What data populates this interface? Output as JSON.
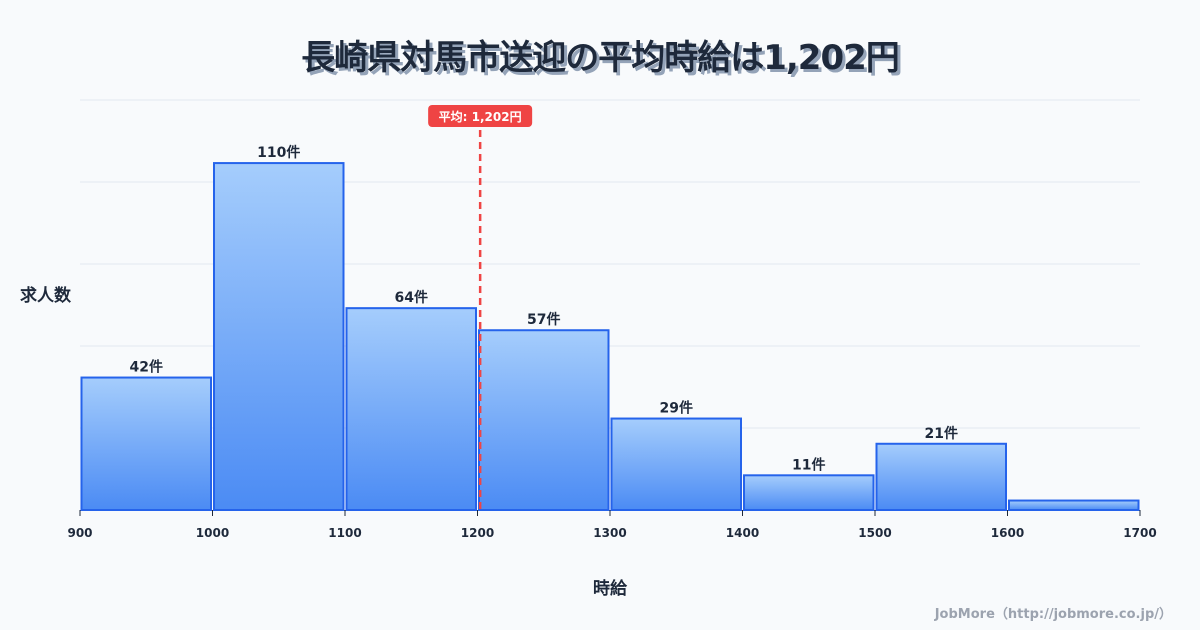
{
  "title": "長崎県対馬市送迎の平均時給は1,202円",
  "footer": "JobMore（http://jobmore.co.jp/）",
  "colors": {
    "bar_top": "#a5cdfc",
    "bar_bottom": "#4b8bf4",
    "bar_stroke": "#2563eb",
    "mean_line": "#ef4444",
    "text": "#1e293b",
    "grid": "#e2e8f0"
  },
  "chart_data": {
    "type": "bar",
    "title": "長崎県対馬市送迎の平均時給は1,202円",
    "xlabel": "時給",
    "ylabel": "求人数",
    "bins": [
      [
        900,
        1000
      ],
      [
        1000,
        1100
      ],
      [
        1100,
        1200
      ],
      [
        1200,
        1300
      ],
      [
        1300,
        1400
      ],
      [
        1400,
        1500
      ],
      [
        1500,
        1600
      ],
      [
        1600,
        1700
      ]
    ],
    "categories": [
      "900-1000",
      "1000-1100",
      "1100-1200",
      "1200-1300",
      "1300-1400",
      "1400-1500",
      "1500-1600",
      "1600-1700"
    ],
    "values": [
      42,
      110,
      64,
      57,
      29,
      11,
      21,
      3
    ],
    "value_labels": [
      "42件",
      "110件",
      "64件",
      "57件",
      "29件",
      "11件",
      "21件",
      ""
    ],
    "x_ticks": [
      "900",
      "1000",
      "1100",
      "1200",
      "1300",
      "1400",
      "1500",
      "1600",
      "1700"
    ],
    "xlim": [
      900,
      1700
    ],
    "ylim": [
      0,
      130
    ],
    "grid": true,
    "mean": 1202,
    "mean_label": "平均: 1,202円"
  }
}
